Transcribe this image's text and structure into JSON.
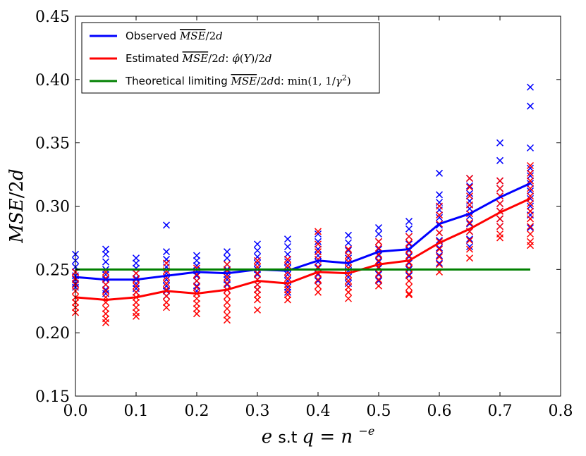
{
  "chart_data": {
    "type": "line",
    "title": "",
    "xlabel": "e s.t q = n^{-e}",
    "ylabel": "MSE/2d",
    "xlim": [
      0.0,
      0.8
    ],
    "ylim": [
      0.15,
      0.45
    ],
    "xticks": [
      "0.0",
      "0.1",
      "0.2",
      "0.3",
      "0.4",
      "0.5",
      "0.6",
      "0.7",
      "0.8"
    ],
    "yticks": [
      "0.15",
      "0.20",
      "0.25",
      "0.30",
      "0.35",
      "0.40",
      "0.45"
    ],
    "grid": false,
    "legend_position": "top-left",
    "x": [
      0.0,
      0.05,
      0.1,
      0.15,
      0.2,
      0.25,
      0.3,
      0.35,
      0.4,
      0.45,
      0.5,
      0.55,
      0.6,
      0.65,
      0.7,
      0.75
    ],
    "series": [
      {
        "name": "Observed \\overline{MSE}/2d",
        "color": "#0000ff",
        "values": [
          0.244,
          0.242,
          0.242,
          0.245,
          0.248,
          0.247,
          0.25,
          0.249,
          0.257,
          0.255,
          0.264,
          0.266,
          0.286,
          0.294,
          0.307,
          0.318
        ],
        "scatter": [
          [
            0.262,
            0.257,
            0.252,
            0.248,
            0.245,
            0.242,
            0.239,
            0.236
          ],
          [
            0.266,
            0.262,
            0.256,
            0.25,
            0.246,
            0.242,
            0.238,
            0.234,
            0.231
          ],
          [
            0.259,
            0.255,
            0.251,
            0.247,
            0.243,
            0.239,
            0.235,
            0.232
          ],
          [
            0.285,
            0.264,
            0.258,
            0.252,
            0.247,
            0.242,
            0.237,
            0.233,
            0.229
          ],
          [
            0.261,
            0.257,
            0.253,
            0.249,
            0.245,
            0.241,
            0.237,
            0.233
          ],
          [
            0.264,
            0.259,
            0.254,
            0.25,
            0.246,
            0.242,
            0.238,
            0.234
          ],
          [
            0.27,
            0.265,
            0.26,
            0.255,
            0.25,
            0.246,
            0.242,
            0.238,
            0.234
          ],
          [
            0.274,
            0.268,
            0.262,
            0.256,
            0.251,
            0.246,
            0.241,
            0.236,
            0.232
          ],
          [
            0.278,
            0.272,
            0.266,
            0.261,
            0.256,
            0.251,
            0.246,
            0.241
          ],
          [
            0.277,
            0.271,
            0.265,
            0.259,
            0.254,
            0.249,
            0.244,
            0.239
          ],
          [
            0.283,
            0.278,
            0.272,
            0.266,
            0.261,
            0.256,
            0.251,
            0.246,
            0.241
          ],
          [
            0.288,
            0.282,
            0.276,
            0.27,
            0.265,
            0.26,
            0.255,
            0.25,
            0.245
          ],
          [
            0.326,
            0.309,
            0.303,
            0.297,
            0.291,
            0.285,
            0.279,
            0.273,
            0.267,
            0.261,
            0.255
          ],
          [
            0.322,
            0.316,
            0.31,
            0.304,
            0.298,
            0.292,
            0.286,
            0.28,
            0.274,
            0.268
          ],
          [
            0.35,
            0.336,
            0.32,
            0.314,
            0.308,
            0.302,
            0.296,
            0.29,
            0.284
          ],
          [
            0.394,
            0.379,
            0.346,
            0.33,
            0.324,
            0.318,
            0.312,
            0.306,
            0.3,
            0.293,
            0.283
          ]
        ]
      },
      {
        "name": "Estimated \\overline{MSE}/2d: \\hat{\\phi}(Y)/2d",
        "color": "#ff0000",
        "values": [
          0.228,
          0.226,
          0.228,
          0.233,
          0.231,
          0.234,
          0.241,
          0.239,
          0.248,
          0.247,
          0.254,
          0.257,
          0.271,
          0.282,
          0.295,
          0.306
        ],
        "scatter": [
          [
            0.248,
            0.243,
            0.238,
            0.233,
            0.228,
            0.224,
            0.22,
            0.216
          ],
          [
            0.248,
            0.243,
            0.238,
            0.233,
            0.228,
            0.224,
            0.219,
            0.215,
            0.211,
            0.208
          ],
          [
            0.247,
            0.242,
            0.237,
            0.232,
            0.228,
            0.224,
            0.22,
            0.216,
            0.213
          ],
          [
            0.255,
            0.249,
            0.244,
            0.239,
            0.234,
            0.229,
            0.224,
            0.22
          ],
          [
            0.251,
            0.246,
            0.241,
            0.236,
            0.231,
            0.227,
            0.223,
            0.219,
            0.215
          ],
          [
            0.254,
            0.249,
            0.244,
            0.239,
            0.234,
            0.229,
            0.224,
            0.219,
            0.214,
            0.21
          ],
          [
            0.257,
            0.252,
            0.247,
            0.242,
            0.238,
            0.234,
            0.23,
            0.226,
            0.218
          ],
          [
            0.258,
            0.253,
            0.248,
            0.243,
            0.238,
            0.234,
            0.23,
            0.226
          ],
          [
            0.28,
            0.27,
            0.264,
            0.258,
            0.252,
            0.247,
            0.242,
            0.237,
            0.232
          ],
          [
            0.266,
            0.261,
            0.256,
            0.251,
            0.246,
            0.241,
            0.236,
            0.232,
            0.227
          ],
          [
            0.272,
            0.267,
            0.262,
            0.257,
            0.252,
            0.247,
            0.242,
            0.237
          ],
          [
            0.276,
            0.271,
            0.266,
            0.261,
            0.256,
            0.251,
            0.246,
            0.241,
            0.236,
            0.231,
            0.23
          ],
          [
            0.3,
            0.293,
            0.286,
            0.279,
            0.272,
            0.266,
            0.26,
            0.254,
            0.248
          ],
          [
            0.322,
            0.315,
            0.308,
            0.301,
            0.294,
            0.287,
            0.28,
            0.273,
            0.266,
            0.259
          ],
          [
            0.32,
            0.314,
            0.308,
            0.302,
            0.296,
            0.29,
            0.284,
            0.278,
            0.275
          ],
          [
            0.332,
            0.326,
            0.32,
            0.314,
            0.308,
            0.302,
            0.296,
            0.29,
            0.284,
            0.278,
            0.272,
            0.269
          ]
        ]
      },
      {
        "name": "Theoretical limiting \\overline{MSE}/2dd: min(1, 1/\\gamma^2)",
        "color": "#008000",
        "values": [
          0.25,
          0.25,
          0.25,
          0.25,
          0.25,
          0.25,
          0.25,
          0.25,
          0.25,
          0.25,
          0.25,
          0.25,
          0.25,
          0.25,
          0.25,
          0.25
        ]
      }
    ]
  }
}
